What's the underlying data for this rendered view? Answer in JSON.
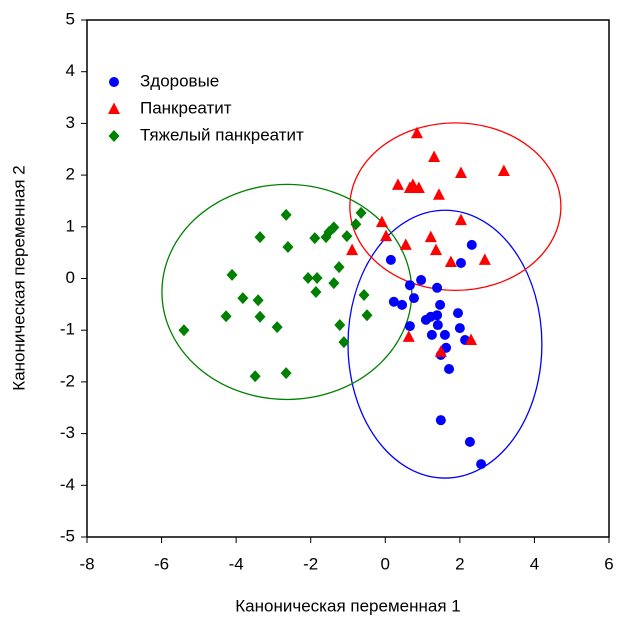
{
  "chart_data": {
    "type": "scatter",
    "x_label": "Каноническая переменная 1",
    "y_label": "Каноническая переменная 2",
    "xlim": [
      -8,
      6
    ],
    "ylim": [
      -5,
      5
    ],
    "xticks": [
      -8,
      -6,
      -4,
      -2,
      0,
      2,
      4,
      6
    ],
    "yticks": [
      -5,
      -4,
      -3,
      -2,
      -1,
      0,
      1,
      2,
      3,
      4,
      5
    ],
    "legend": "upper left",
    "series": [
      {
        "name": "Здоровые",
        "color": "#0000ff",
        "marker": "circle",
        "x": [
          0.15,
          0.23,
          0.45,
          0.66,
          0.77,
          0.66,
          0.96,
          1.22,
          1.09,
          1.39,
          1.39,
          1.25,
          1.41,
          1.47,
          1.6,
          1.49,
          1.63,
          1.71,
          1.95,
          2.0,
          2.03,
          2.32,
          2.14,
          1.49,
          2.27,
          2.57
        ],
        "y": [
          0.36,
          -0.45,
          -0.51,
          -0.13,
          -0.38,
          -0.92,
          -0.03,
          -0.74,
          -0.8,
          -0.18,
          -0.71,
          -1.09,
          -0.9,
          -0.51,
          -1.09,
          -1.48,
          -1.34,
          -1.75,
          -0.67,
          -0.96,
          0.3,
          0.65,
          -1.19,
          -2.74,
          -3.16,
          -3.59
        ]
      },
      {
        "name": "Панкреатит",
        "color": "#ff0000",
        "marker": "triangle",
        "x": [
          -0.89,
          -0.09,
          0.02,
          0.34,
          0.55,
          0.66,
          0.74,
          0.85,
          0.9,
          1.31,
          1.36,
          1.22,
          1.44,
          2.03,
          2.03,
          3.18,
          2.67,
          1.76,
          0.63,
          1.49,
          2.3
        ],
        "y": [
          0.55,
          1.09,
          0.82,
          1.81,
          0.65,
          1.75,
          1.81,
          2.81,
          1.75,
          2.35,
          0.55,
          0.8,
          1.62,
          2.04,
          1.13,
          2.08,
          0.36,
          0.32,
          -1.13,
          -1.42,
          -1.19
        ]
      },
      {
        "name": "Тяжелый панкреатит",
        "color": "#008000",
        "marker": "diamond",
        "x": [
          -5.4,
          -4.27,
          -4.11,
          -3.82,
          -3.41,
          -3.36,
          -3.36,
          -2.9,
          -3.49,
          -2.66,
          -2.61,
          -2.66,
          -2.07,
          -1.89,
          -1.83,
          -1.86,
          -1.59,
          -1.51,
          -1.38,
          -1.38,
          -1.24,
          -1.03,
          -1.22,
          -1.11,
          -0.79,
          -0.65,
          -0.57,
          -0.49
        ],
        "y": [
          -1.0,
          -0.73,
          0.07,
          -0.38,
          -0.42,
          0.8,
          -0.74,
          -0.94,
          -1.89,
          1.23,
          0.61,
          -1.83,
          0.01,
          0.78,
          0.01,
          -0.26,
          0.8,
          0.9,
          0.99,
          -0.09,
          0.22,
          0.82,
          -0.9,
          -1.23,
          1.05,
          1.27,
          -0.32,
          -0.71
        ]
      }
    ],
    "ellipses": [
      {
        "color": "#0000ff",
        "cx": 1.6,
        "cy": -1.27,
        "rx": 2.6,
        "ry": 2.59
      },
      {
        "color": "#ff0000",
        "cx": 1.88,
        "cy": 1.39,
        "rx": 2.83,
        "ry": 1.62
      },
      {
        "color": "#008000",
        "cx": -2.64,
        "cy": -0.26,
        "rx": 3.35,
        "ry": 2.08
      }
    ]
  }
}
